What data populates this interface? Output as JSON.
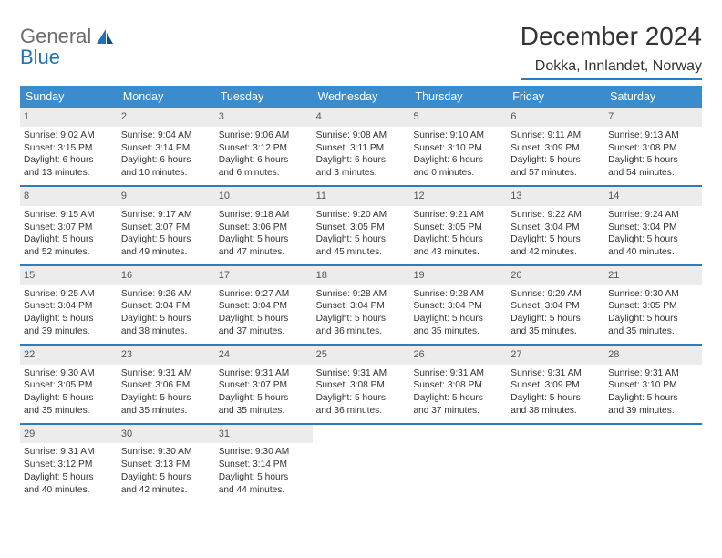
{
  "logo": {
    "word1": "General",
    "word2": "Blue"
  },
  "title": "December 2024",
  "location": "Dokka, Innlandet, Norway",
  "colors": {
    "header_bg": "#3b8ccc",
    "rule": "#2e7bbd",
    "daynum_bg": "#ececec",
    "logo_gray": "#6a6c6e",
    "logo_blue": "#1e73b8"
  },
  "weekdays": [
    "Sunday",
    "Monday",
    "Tuesday",
    "Wednesday",
    "Thursday",
    "Friday",
    "Saturday"
  ],
  "weeks": [
    [
      {
        "n": "1",
        "rise": "Sunrise: 9:02 AM",
        "set": "Sunset: 3:15 PM",
        "d1": "Daylight: 6 hours",
        "d2": "and 13 minutes."
      },
      {
        "n": "2",
        "rise": "Sunrise: 9:04 AM",
        "set": "Sunset: 3:14 PM",
        "d1": "Daylight: 6 hours",
        "d2": "and 10 minutes."
      },
      {
        "n": "3",
        "rise": "Sunrise: 9:06 AM",
        "set": "Sunset: 3:12 PM",
        "d1": "Daylight: 6 hours",
        "d2": "and 6 minutes."
      },
      {
        "n": "4",
        "rise": "Sunrise: 9:08 AM",
        "set": "Sunset: 3:11 PM",
        "d1": "Daylight: 6 hours",
        "d2": "and 3 minutes."
      },
      {
        "n": "5",
        "rise": "Sunrise: 9:10 AM",
        "set": "Sunset: 3:10 PM",
        "d1": "Daylight: 6 hours",
        "d2": "and 0 minutes."
      },
      {
        "n": "6",
        "rise": "Sunrise: 9:11 AM",
        "set": "Sunset: 3:09 PM",
        "d1": "Daylight: 5 hours",
        "d2": "and 57 minutes."
      },
      {
        "n": "7",
        "rise": "Sunrise: 9:13 AM",
        "set": "Sunset: 3:08 PM",
        "d1": "Daylight: 5 hours",
        "d2": "and 54 minutes."
      }
    ],
    [
      {
        "n": "8",
        "rise": "Sunrise: 9:15 AM",
        "set": "Sunset: 3:07 PM",
        "d1": "Daylight: 5 hours",
        "d2": "and 52 minutes."
      },
      {
        "n": "9",
        "rise": "Sunrise: 9:17 AM",
        "set": "Sunset: 3:07 PM",
        "d1": "Daylight: 5 hours",
        "d2": "and 49 minutes."
      },
      {
        "n": "10",
        "rise": "Sunrise: 9:18 AM",
        "set": "Sunset: 3:06 PM",
        "d1": "Daylight: 5 hours",
        "d2": "and 47 minutes."
      },
      {
        "n": "11",
        "rise": "Sunrise: 9:20 AM",
        "set": "Sunset: 3:05 PM",
        "d1": "Daylight: 5 hours",
        "d2": "and 45 minutes."
      },
      {
        "n": "12",
        "rise": "Sunrise: 9:21 AM",
        "set": "Sunset: 3:05 PM",
        "d1": "Daylight: 5 hours",
        "d2": "and 43 minutes."
      },
      {
        "n": "13",
        "rise": "Sunrise: 9:22 AM",
        "set": "Sunset: 3:04 PM",
        "d1": "Daylight: 5 hours",
        "d2": "and 42 minutes."
      },
      {
        "n": "14",
        "rise": "Sunrise: 9:24 AM",
        "set": "Sunset: 3:04 PM",
        "d1": "Daylight: 5 hours",
        "d2": "and 40 minutes."
      }
    ],
    [
      {
        "n": "15",
        "rise": "Sunrise: 9:25 AM",
        "set": "Sunset: 3:04 PM",
        "d1": "Daylight: 5 hours",
        "d2": "and 39 minutes."
      },
      {
        "n": "16",
        "rise": "Sunrise: 9:26 AM",
        "set": "Sunset: 3:04 PM",
        "d1": "Daylight: 5 hours",
        "d2": "and 38 minutes."
      },
      {
        "n": "17",
        "rise": "Sunrise: 9:27 AM",
        "set": "Sunset: 3:04 PM",
        "d1": "Daylight: 5 hours",
        "d2": "and 37 minutes."
      },
      {
        "n": "18",
        "rise": "Sunrise: 9:28 AM",
        "set": "Sunset: 3:04 PM",
        "d1": "Daylight: 5 hours",
        "d2": "and 36 minutes."
      },
      {
        "n": "19",
        "rise": "Sunrise: 9:28 AM",
        "set": "Sunset: 3:04 PM",
        "d1": "Daylight: 5 hours",
        "d2": "and 35 minutes."
      },
      {
        "n": "20",
        "rise": "Sunrise: 9:29 AM",
        "set": "Sunset: 3:04 PM",
        "d1": "Daylight: 5 hours",
        "d2": "and 35 minutes."
      },
      {
        "n": "21",
        "rise": "Sunrise: 9:30 AM",
        "set": "Sunset: 3:05 PM",
        "d1": "Daylight: 5 hours",
        "d2": "and 35 minutes."
      }
    ],
    [
      {
        "n": "22",
        "rise": "Sunrise: 9:30 AM",
        "set": "Sunset: 3:05 PM",
        "d1": "Daylight: 5 hours",
        "d2": "and 35 minutes."
      },
      {
        "n": "23",
        "rise": "Sunrise: 9:31 AM",
        "set": "Sunset: 3:06 PM",
        "d1": "Daylight: 5 hours",
        "d2": "and 35 minutes."
      },
      {
        "n": "24",
        "rise": "Sunrise: 9:31 AM",
        "set": "Sunset: 3:07 PM",
        "d1": "Daylight: 5 hours",
        "d2": "and 35 minutes."
      },
      {
        "n": "25",
        "rise": "Sunrise: 9:31 AM",
        "set": "Sunset: 3:08 PM",
        "d1": "Daylight: 5 hours",
        "d2": "and 36 minutes."
      },
      {
        "n": "26",
        "rise": "Sunrise: 9:31 AM",
        "set": "Sunset: 3:08 PM",
        "d1": "Daylight: 5 hours",
        "d2": "and 37 minutes."
      },
      {
        "n": "27",
        "rise": "Sunrise: 9:31 AM",
        "set": "Sunset: 3:09 PM",
        "d1": "Daylight: 5 hours",
        "d2": "and 38 minutes."
      },
      {
        "n": "28",
        "rise": "Sunrise: 9:31 AM",
        "set": "Sunset: 3:10 PM",
        "d1": "Daylight: 5 hours",
        "d2": "and 39 minutes."
      }
    ],
    [
      {
        "n": "29",
        "rise": "Sunrise: 9:31 AM",
        "set": "Sunset: 3:12 PM",
        "d1": "Daylight: 5 hours",
        "d2": "and 40 minutes."
      },
      {
        "n": "30",
        "rise": "Sunrise: 9:30 AM",
        "set": "Sunset: 3:13 PM",
        "d1": "Daylight: 5 hours",
        "d2": "and 42 minutes."
      },
      {
        "n": "31",
        "rise": "Sunrise: 9:30 AM",
        "set": "Sunset: 3:14 PM",
        "d1": "Daylight: 5 hours",
        "d2": "and 44 minutes."
      },
      {
        "empty": true
      },
      {
        "empty": true
      },
      {
        "empty": true
      },
      {
        "empty": true
      }
    ]
  ]
}
